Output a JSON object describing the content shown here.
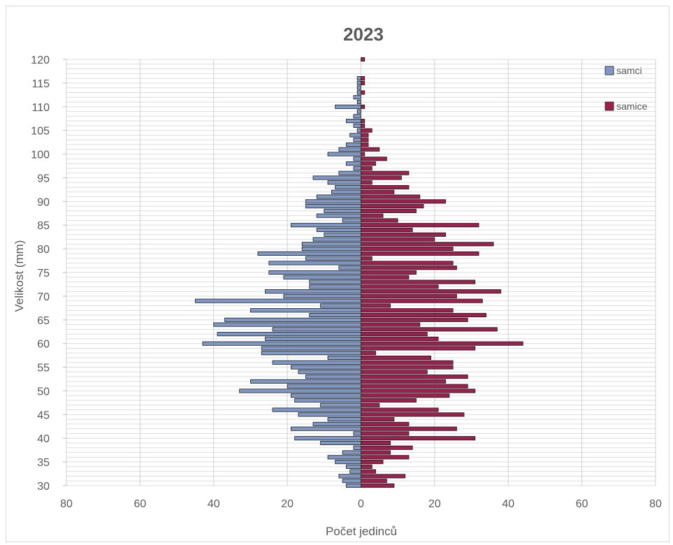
{
  "chart_data": {
    "type": "bar",
    "orientation": "horizontal",
    "layout": "population-pyramid",
    "title": "2023",
    "xlabel": "Počet jedinců",
    "ylabel": "Velikost (mm)",
    "xlim": [
      -80,
      80
    ],
    "x_ticks": [
      -80,
      -60,
      -40,
      -20,
      0,
      20,
      40,
      60,
      80
    ],
    "x_tick_labels": [
      "80",
      "60",
      "40",
      "20",
      "0",
      "20",
      "40",
      "60",
      "80"
    ],
    "ylim": [
      30,
      120
    ],
    "y_ticks": [
      30,
      35,
      40,
      45,
      50,
      55,
      60,
      65,
      70,
      75,
      80,
      85,
      90,
      95,
      100,
      105,
      110,
      115,
      120
    ],
    "grid": true,
    "legend_position": "top-right",
    "categories": [
      30,
      31,
      32,
      33,
      34,
      35,
      36,
      37,
      38,
      39,
      40,
      41,
      42,
      43,
      44,
      45,
      46,
      47,
      48,
      49,
      50,
      51,
      52,
      53,
      54,
      55,
      56,
      57,
      58,
      59,
      60,
      61,
      62,
      63,
      64,
      65,
      66,
      67,
      68,
      69,
      70,
      71,
      72,
      73,
      74,
      75,
      76,
      77,
      78,
      79,
      80,
      81,
      82,
      83,
      84,
      85,
      86,
      87,
      88,
      89,
      90,
      91,
      92,
      93,
      94,
      95,
      96,
      97,
      98,
      99,
      100,
      101,
      102,
      103,
      104,
      105,
      106,
      107,
      108,
      109,
      110,
      111,
      112,
      113,
      114,
      115,
      116,
      117,
      118,
      119,
      120
    ],
    "series": [
      {
        "name": "samci",
        "color": "#7f97c4",
        "values": [
          4,
          5,
          6,
          3,
          4,
          7,
          9,
          5,
          2,
          11,
          18,
          2,
          19,
          13,
          9,
          17,
          24,
          11,
          18,
          19,
          33,
          20,
          30,
          15,
          17,
          19,
          24,
          9,
          27,
          27,
          43,
          26,
          39,
          24,
          40,
          37,
          14,
          30,
          11,
          45,
          21,
          26,
          14,
          14,
          21,
          25,
          6,
          25,
          15,
          28,
          16,
          16,
          13,
          10,
          12,
          19,
          5,
          12,
          10,
          15,
          15,
          12,
          8,
          7,
          9,
          13,
          6,
          2,
          4,
          2,
          9,
          6,
          4,
          2,
          3,
          1,
          2,
          4,
          2,
          1,
          7,
          1,
          2,
          1,
          1,
          1,
          1,
          0,
          0,
          0,
          0
        ]
      },
      {
        "name": "samice",
        "color": "#9d1f4e",
        "values": [
          9,
          7,
          12,
          4,
          3,
          6,
          13,
          8,
          14,
          8,
          31,
          13,
          26,
          13,
          9,
          28,
          21,
          5,
          15,
          24,
          31,
          29,
          23,
          29,
          18,
          25,
          25,
          19,
          4,
          31,
          44,
          21,
          18,
          37,
          16,
          29,
          34,
          25,
          8,
          33,
          26,
          38,
          21,
          31,
          13,
          15,
          26,
          25,
          3,
          32,
          25,
          36,
          20,
          23,
          14,
          32,
          10,
          6,
          15,
          17,
          23,
          16,
          9,
          13,
          3,
          11,
          13,
          3,
          4,
          7,
          1,
          5,
          2,
          2,
          2,
          3,
          1,
          1,
          0,
          0,
          1,
          0,
          0,
          1,
          0,
          1,
          1,
          0,
          0,
          0,
          1
        ]
      }
    ]
  }
}
